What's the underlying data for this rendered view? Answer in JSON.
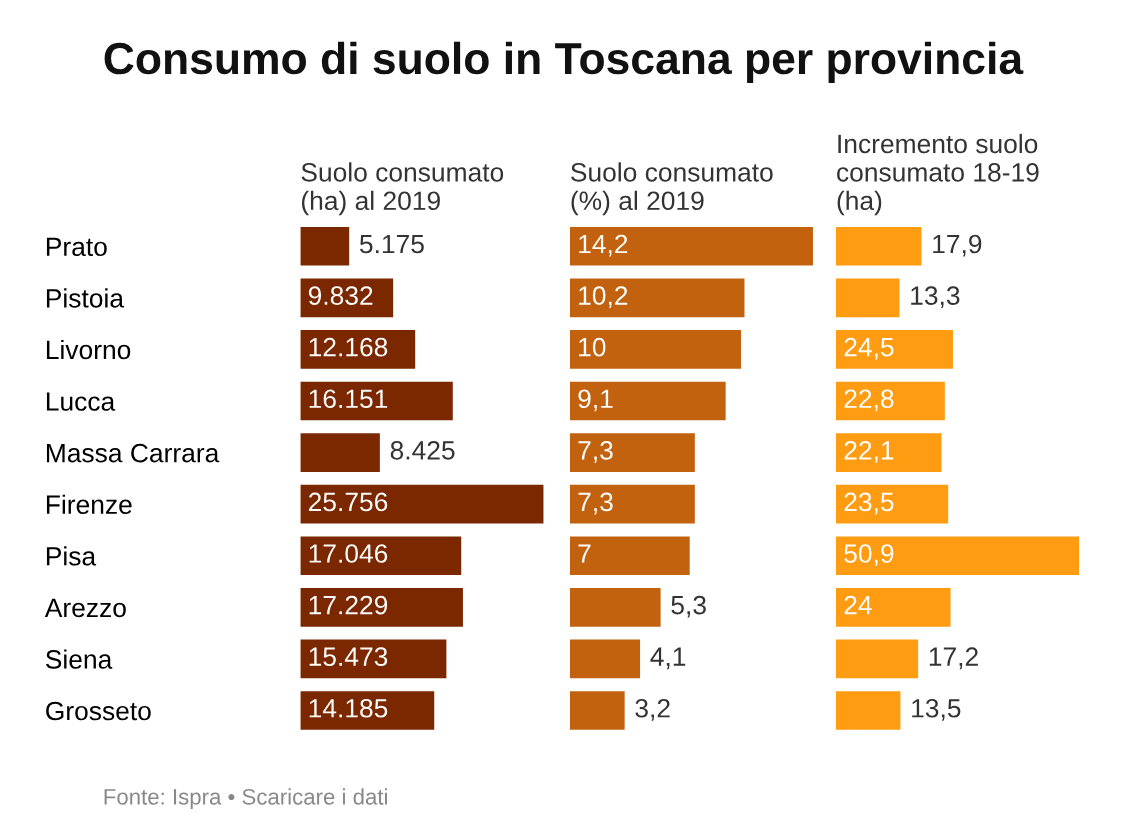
{
  "chart_data": [
    {
      "type": "bar",
      "orientation": "horizontal",
      "title": "Consumo di suolo in Toscana per provincia",
      "subtitle": "Suolo consumato\n(ha) al 2019",
      "categories": [
        "Prato",
        "Pistoia",
        "Livorno",
        "Lucca",
        "Massa Carrara",
        "Firenze",
        "Pisa",
        "Arezzo",
        "Siena",
        "Grosseto"
      ],
      "values": [
        5175,
        9832,
        12168,
        16151,
        8425,
        25756,
        17046,
        17229,
        15473,
        14185
      ],
      "value_labels": [
        "5.175",
        "9.832",
        "12.168",
        "16.151",
        "8.425",
        "25.756",
        "17.046",
        "17.229",
        "15.473",
        "14.185"
      ],
      "color": "#7b2800",
      "tick_labels": "y",
      "annotations": [
        "Fonte: Ispra • Scaricare i dati"
      ]
    },
    {
      "type": "bar",
      "orientation": "horizontal",
      "subtitle": "Suolo consumato\n(%) al 2019",
      "categories": [
        null,
        null,
        null,
        null,
        null,
        null,
        null,
        null,
        null,
        null
      ],
      "values": [
        14.2,
        10.2,
        10,
        9.1,
        7.3,
        7.3,
        7,
        5.3,
        4.1,
        3.2
      ],
      "value_labels": [
        "14,2",
        "10,2",
        "10",
        "9,1",
        "7,3",
        "7,3",
        "7",
        "5,3",
        "4,1",
        "3,2"
      ],
      "color": "#c2620e",
      "tick_labels": false
    },
    {
      "type": "bar",
      "orientation": "horizontal",
      "subtitle": "Incremento suolo\nconsumato 18-19\n(ha)",
      "categories": [
        null,
        null,
        null,
        null,
        null,
        null,
        null,
        null,
        null,
        null
      ],
      "values": [
        17.9,
        13.3,
        24.5,
        22.8,
        22.1,
        23.5,
        50.9,
        24,
        17.2,
        13.5
      ],
      "value_labels": [
        "17,9",
        "13,3",
        "24,5",
        "22,8",
        "22,1",
        "23,5",
        "50,9",
        "24",
        "17,2",
        "13,5"
      ],
      "color": "#ff9c12",
      "tick_labels": false
    }
  ]
}
